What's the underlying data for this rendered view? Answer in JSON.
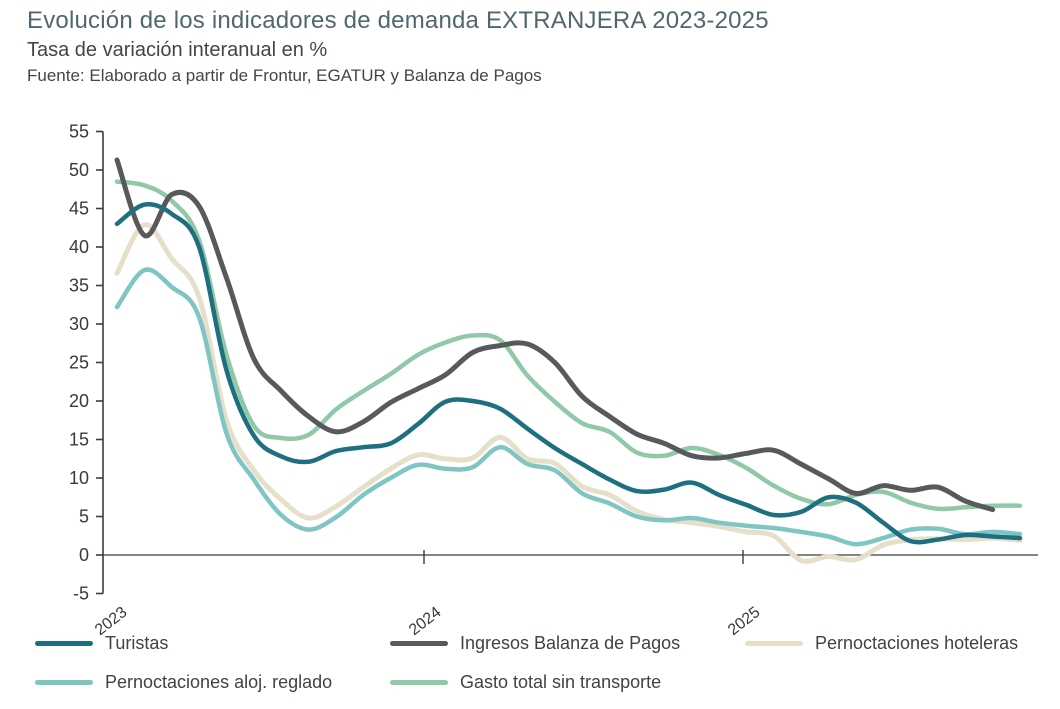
{
  "header": {
    "title": "Evolución de los indicadores de demanda EXTRANJERA 2023-2025",
    "subtitle": "Tasa de variación interanual en %",
    "source": "Fuente: Elaborado a partir de Frontur, EGATUR y Balanza de Pagos"
  },
  "chart_data": {
    "type": "line",
    "title": "Evolución de los indicadores de demanda EXTRANJERA 2023-2025",
    "ylabel": "Tasa de variación interanual en %",
    "grid": false,
    "legend_position": "bottom",
    "y_axis": {
      "min": -5,
      "max": 55,
      "step": 5,
      "tick_labels": [
        "-5",
        "0",
        "5",
        "10",
        "15",
        "20",
        "25",
        "30",
        "35",
        "40",
        "45",
        "50",
        "55"
      ]
    },
    "x_axis": {
      "tick_labels": [
        "2023",
        "2024",
        "2025"
      ]
    },
    "x_monthly": [
      "2023-01",
      "2023-02",
      "2023-03",
      "2023-04",
      "2023-05",
      "2023-06",
      "2023-07",
      "2023-08",
      "2023-09",
      "2023-10",
      "2023-11",
      "2023-12",
      "2024-01",
      "2024-02",
      "2024-03",
      "2024-04",
      "2024-05",
      "2024-06",
      "2024-07",
      "2024-08",
      "2024-09",
      "2024-10",
      "2024-11",
      "2024-12",
      "2025-01",
      "2025-02",
      "2025-03",
      "2025-04",
      "2025-05",
      "2025-06",
      "2025-07",
      "2025-08",
      "2025-09",
      "2025-10"
    ],
    "series": [
      {
        "name": "Turistas",
        "color": "#1e6f80",
        "width": 4.5,
        "values": [
          43.0,
          45.5,
          44.3,
          40.0,
          24.0,
          15.5,
          12.8,
          12.1,
          13.5,
          14.0,
          14.5,
          17.0,
          19.9,
          20.0,
          19.0,
          16.4,
          13.9,
          11.8,
          9.8,
          8.3,
          8.5,
          9.4,
          7.8,
          6.5,
          5.2,
          5.6,
          7.5,
          6.8,
          4.2,
          1.8,
          2.0,
          2.6,
          2.4,
          2.2
        ]
      },
      {
        "name": "Ingresos Balanza de Pagos",
        "color": "#58595b",
        "width": 5,
        "values": [
          51.3,
          41.5,
          46.8,
          45.3,
          36.0,
          25.5,
          21.3,
          18.0,
          16.0,
          17.3,
          19.8,
          21.6,
          23.4,
          26.3,
          27.2,
          27.4,
          25.0,
          20.6,
          18.0,
          15.7,
          14.5,
          12.9,
          12.6,
          13.2,
          13.6,
          11.8,
          9.9,
          8.0,
          9.0,
          8.4,
          8.8,
          7.0,
          5.9,
          null
        ]
      },
      {
        "name": "Pernoctaciones hoteleras",
        "color": "#e6dfca",
        "width": 5,
        "values": [
          36.6,
          42.9,
          38.5,
          33.5,
          17.5,
          11.0,
          7.2,
          4.8,
          6.3,
          8.8,
          11.2,
          13.0,
          12.5,
          12.6,
          15.3,
          12.5,
          11.9,
          8.9,
          7.8,
          5.7,
          4.6,
          4.2,
          3.7,
          3.0,
          2.5,
          -0.7,
          -0.2,
          -0.6,
          1.3,
          2.0,
          2.1,
          2.0,
          2.2,
          1.9
        ]
      },
      {
        "name": "Pernoctaciones aloj. reglado",
        "color": "#7fc5c3",
        "width": 4.5,
        "values": [
          32.2,
          37.0,
          34.8,
          30.9,
          15.8,
          9.8,
          5.2,
          3.3,
          4.9,
          7.8,
          10.0,
          11.7,
          11.2,
          11.4,
          14.0,
          11.8,
          11.0,
          8.0,
          6.7,
          5.0,
          4.5,
          4.8,
          4.2,
          3.8,
          3.5,
          3.0,
          2.4,
          1.4,
          2.2,
          3.3,
          3.4,
          2.7,
          3.0,
          2.7
        ]
      },
      {
        "name": "Gasto total sin transporte",
        "color": "#8fc9a7",
        "width": 4.5,
        "values": [
          48.5,
          48.0,
          46.0,
          40.9,
          26.0,
          16.8,
          15.2,
          15.6,
          18.9,
          21.3,
          23.5,
          26.0,
          27.6,
          28.5,
          27.9,
          23.3,
          19.9,
          17.1,
          16.0,
          13.3,
          12.9,
          13.9,
          13.0,
          11.3,
          9.0,
          7.3,
          6.6,
          7.8,
          8.2,
          6.8,
          6.0,
          6.2,
          6.4,
          6.4
        ]
      }
    ]
  }
}
